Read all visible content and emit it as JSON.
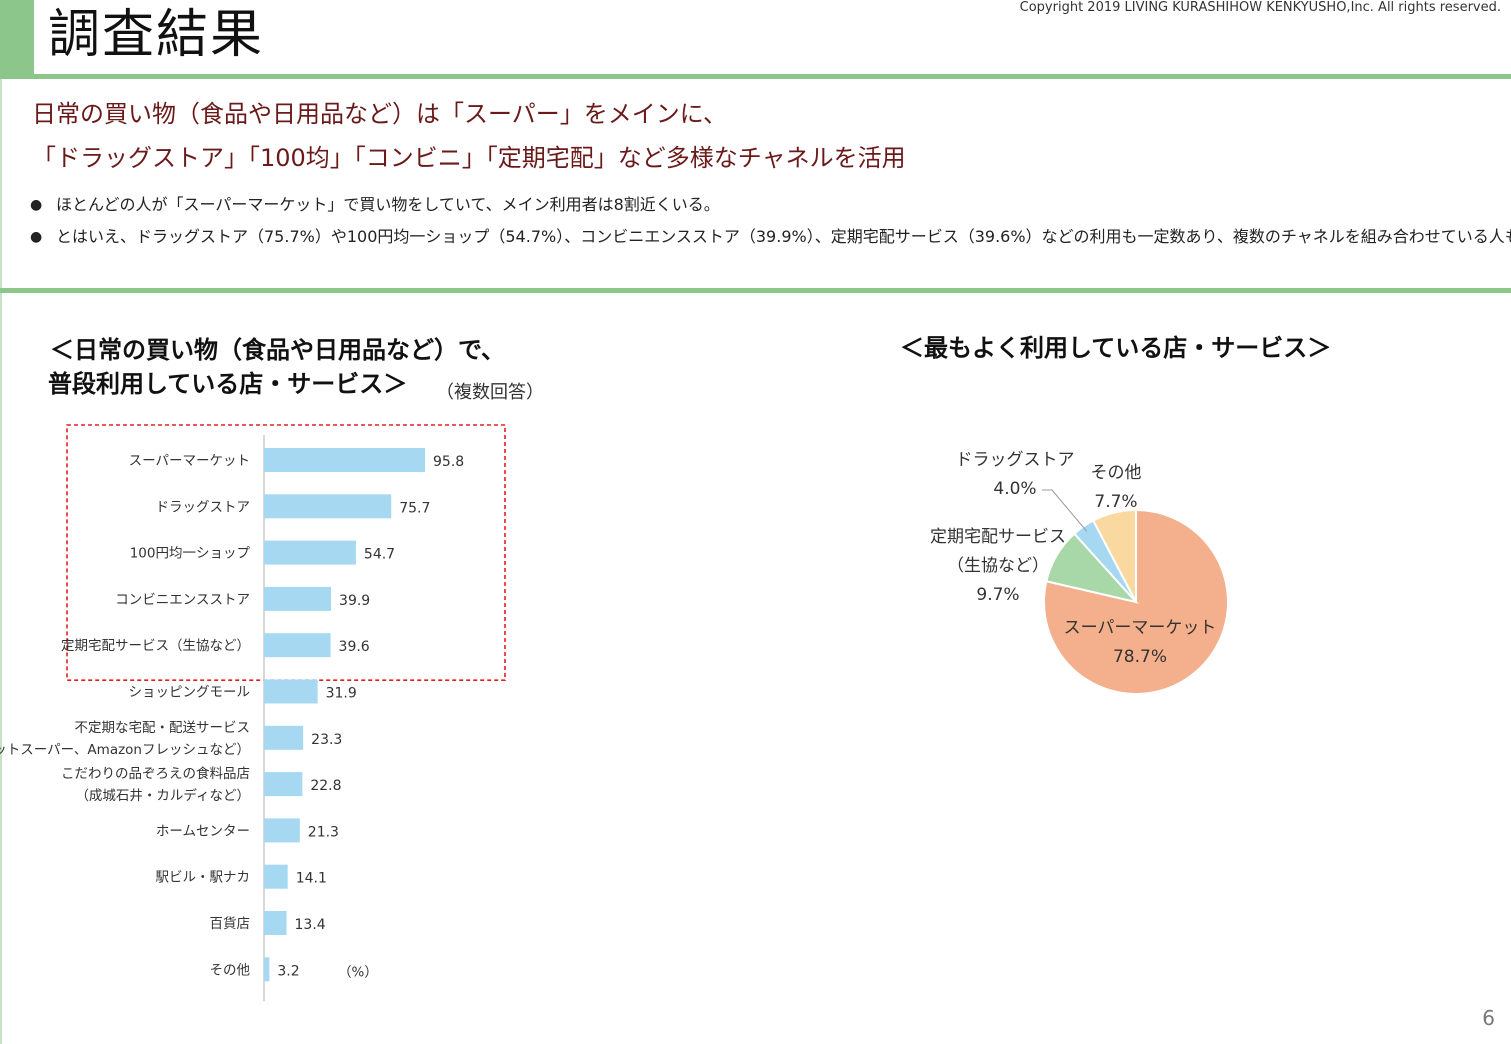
{
  "header": {
    "title": "調査結果",
    "copyright": "Copyright 2019 LIVING KURASHIHOW KENKYUSHO,Inc.  All rights reserved."
  },
  "headline": {
    "line1": "日常の買い物（食品や日用品など）は「スーパー」をメインに、",
    "line2": "「ドラッグストア」「100均」「コンビニ」「定期宅配」など多様なチャネルを活用"
  },
  "bullets": [
    "ほとんどの人が「スーパーマーケット」で買い物をしていて、メイン利用者は8割近くいる。",
    "とはいえ、ドラッグストア（75.7%）や100円均一ショップ（54.7%）、コンビニエンスストア（39.9%）、定期宅配サービス（39.6%）などの利用も一定数あり、複数のチャネルを組み合わせている人も多い。"
  ],
  "left_chart": {
    "title_line1": "＜日常の買い物（食品や日用品など）で、",
    "title_line2": "普段利用している店・サービス＞",
    "note": "（複数回答）",
    "unit": "（%）"
  },
  "right_chart": {
    "title": "＜最もよく利用している店・サービス＞"
  },
  "page_number": "6",
  "colors": {
    "accent_green": "#8dc68b",
    "headline_text": "#6b1a1a",
    "bar": "#a6d8f2",
    "highlight_box": "#e02020",
    "pie_supermarket": "#f4b08c",
    "pie_delivery": "#a8d8a8",
    "pie_drugstore": "#a6d8f2",
    "pie_other": "#f9d9a0"
  },
  "chart_data": [
    {
      "type": "bar",
      "orientation": "horizontal",
      "title": "＜日常の買い物（食品や日用品など）で、普段利用している店・サービス＞",
      "xlabel": "（%）",
      "xlim": [
        0,
        100
      ],
      "categories": [
        [
          "スーパーマーケット"
        ],
        [
          "ドラッグストア"
        ],
        [
          "100円均一ショップ"
        ],
        [
          "コンビニエンスストア"
        ],
        [
          "定期宅配サービス（生協など）"
        ],
        [
          "ショッピングモール"
        ],
        [
          "不定期な宅配・配送サービス",
          "（ネットスーパー、Amazonフレッシュなど）"
        ],
        [
          "こだわりの品ぞろえの食料品店",
          "（成城石井・カルディなど）"
        ],
        [
          "ホームセンター"
        ],
        [
          "駅ビル・駅ナカ"
        ],
        [
          "百貨店"
        ],
        [
          "その他"
        ]
      ],
      "values": [
        95.8,
        75.7,
        54.7,
        39.9,
        39.6,
        31.9,
        23.3,
        22.8,
        21.3,
        14.1,
        13.4,
        3.2
      ],
      "value_labels": [
        "95.8",
        "75.7",
        "54.7",
        "39.9",
        "39.6",
        "31.9",
        "23.3",
        "22.8",
        "21.3",
        "14.1",
        "13.4",
        "3.2"
      ],
      "highlighted_top_n": 5
    },
    {
      "type": "pie",
      "title": "＜最もよく利用している店・サービス＞",
      "slices": [
        {
          "label": [
            "スーパーマーケット"
          ],
          "value": 78.7,
          "pct": "78.7%",
          "color": "#f4b08c"
        },
        {
          "label": [
            "定期宅配サービス",
            "（生協など）"
          ],
          "value": 9.7,
          "pct": "9.7%",
          "color": "#a8d8a8"
        },
        {
          "label": [
            "ドラッグストア"
          ],
          "value": 4.0,
          "pct": "4.0%",
          "color": "#a6d8f2"
        },
        {
          "label": [
            "その他"
          ],
          "value": 7.7,
          "pct": "7.7%",
          "color": "#f9d9a0"
        }
      ]
    }
  ]
}
